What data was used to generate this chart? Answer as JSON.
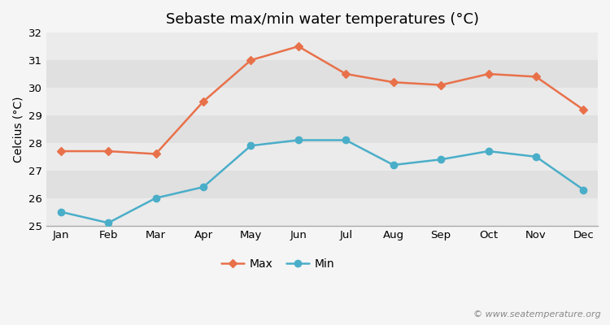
{
  "title": "Sebaste max/min water temperatures (°C)",
  "ylabel": "Celcius (°C)",
  "months": [
    "Jan",
    "Feb",
    "Mar",
    "Apr",
    "May",
    "Jun",
    "Jul",
    "Aug",
    "Sep",
    "Oct",
    "Nov",
    "Dec"
  ],
  "max_temps": [
    27.7,
    27.7,
    27.6,
    29.5,
    31.0,
    31.5,
    30.5,
    30.2,
    30.1,
    30.5,
    30.4,
    29.2
  ],
  "min_temps": [
    25.5,
    25.1,
    26.0,
    26.4,
    27.9,
    28.1,
    28.1,
    27.2,
    27.4,
    27.7,
    27.5,
    26.3
  ],
  "max_color": "#e8714a",
  "min_color": "#4aaec9",
  "bg_color": "#f5f5f5",
  "band_light": "#ebebeb",
  "band_dark": "#e0e0e0",
  "grid_color": "#ffffff",
  "ylim": [
    25,
    32
  ],
  "yticks": [
    25,
    26,
    27,
    28,
    29,
    30,
    31,
    32
  ],
  "legend_labels": [
    "Max",
    "Min"
  ],
  "watermark": "© www.seatemperature.org",
  "title_fontsize": 13,
  "label_fontsize": 10,
  "tick_fontsize": 9.5,
  "watermark_fontsize": 8
}
